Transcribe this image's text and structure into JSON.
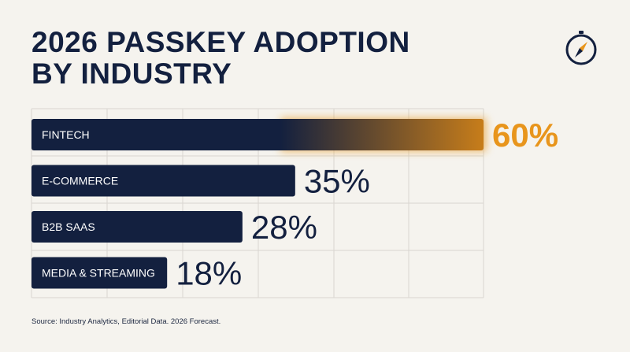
{
  "title_line1": "2026 PASSKEY ADOPTION",
  "title_line2": "BY INDUSTRY",
  "icon": "compass-icon",
  "source": "Source: Industry Analytics, Editorial Data. 2026 Forecast.",
  "colors": {
    "background": "#f5f3ee",
    "bar": "#13203f",
    "highlight": "#e8951c",
    "grid": "#d9d6d0"
  },
  "chart_data": {
    "type": "bar",
    "orientation": "horizontal",
    "title": "2026 PASSKEY ADOPTION BY INDUSTRY",
    "categories": [
      "FINTECH",
      "E-COMMERCE",
      "B2B SAAS",
      "MEDIA & STREAMING"
    ],
    "values": [
      60,
      35,
      28,
      18
    ],
    "value_labels": [
      "60%",
      "35%",
      "28%",
      "18%"
    ],
    "highlight_index": 0,
    "xlim": [
      0,
      60
    ],
    "grid": true
  }
}
